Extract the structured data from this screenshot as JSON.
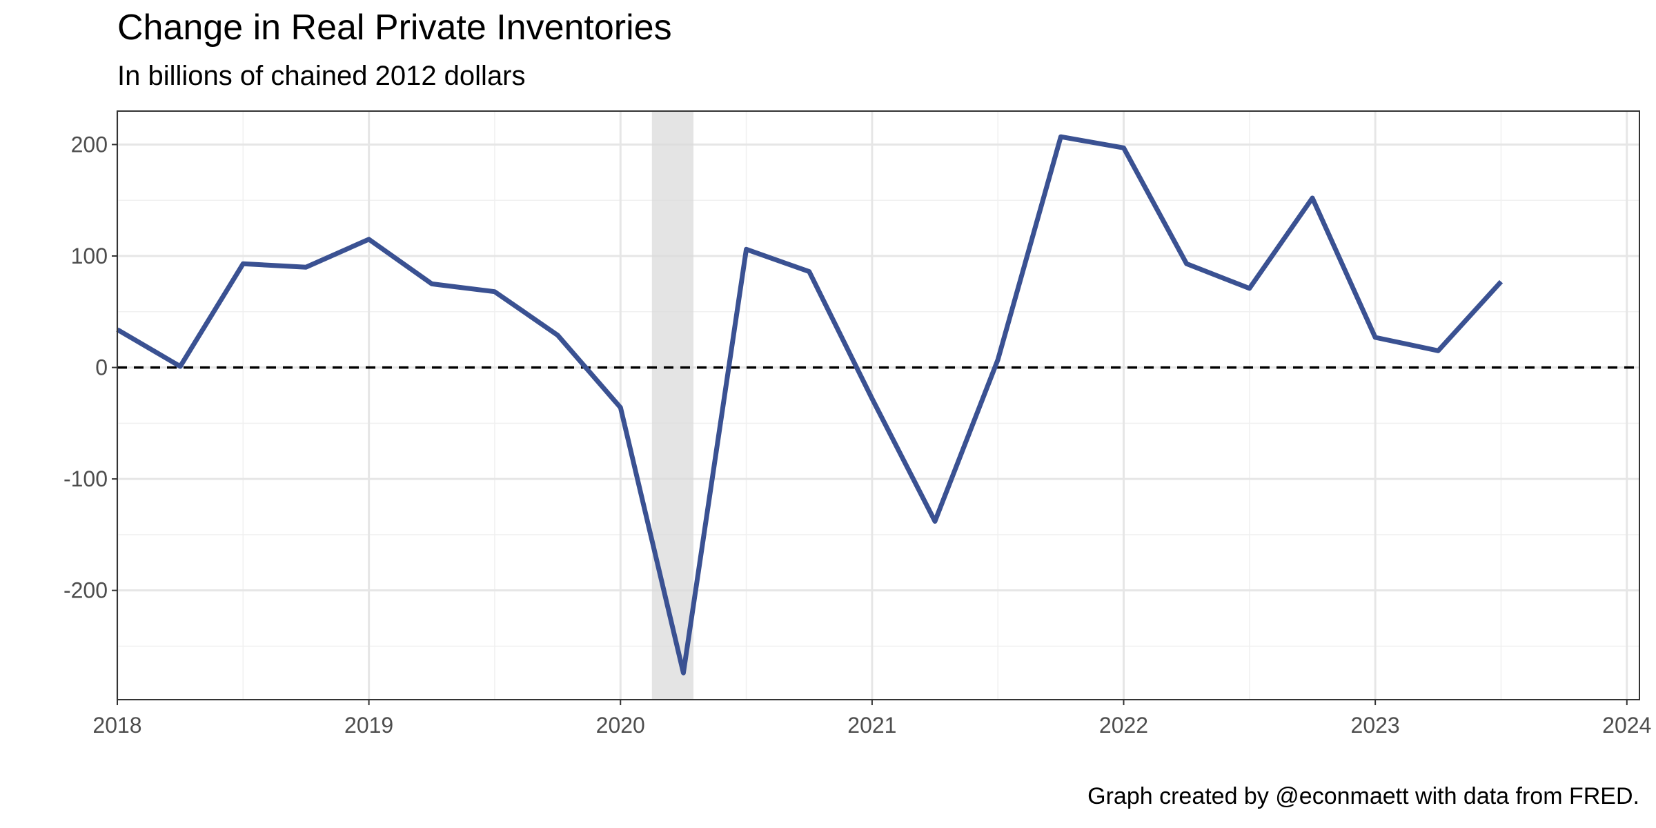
{
  "chart_data": {
    "type": "line",
    "title": "Change in Real Private Inventories",
    "subtitle": "In billions of chained 2012 dollars",
    "caption": "Graph created by @econmaett with data from FRED.",
    "xlabel": "",
    "ylabel": "",
    "xlim": [
      2018,
      2024.05
    ],
    "ylim": [
      -298,
      230
    ],
    "x_ticks": [
      2018,
      2019,
      2020,
      2021,
      2022,
      2023,
      2024
    ],
    "y_ticks": [
      -200,
      -100,
      0,
      100,
      200
    ],
    "y_tick_labels": [
      "-200",
      "-100",
      "0",
      "100",
      "200"
    ],
    "grid": true,
    "reference_line": {
      "y": 0,
      "style": "dashed",
      "color": "#000000"
    },
    "recession_shading": [
      {
        "start": 2020.125,
        "end": 2020.29
      }
    ],
    "series": [
      {
        "color": "#3a5192",
        "x": [
          2018.0,
          2018.25,
          2018.5,
          2018.75,
          2019.0,
          2019.25,
          2019.5,
          2019.75,
          2020.0,
          2020.25,
          2020.5,
          2020.75,
          2021.0,
          2021.25,
          2021.5,
          2021.75,
          2022.0,
          2022.25,
          2022.5,
          2022.75,
          2023.0,
          2023.25,
          2023.5
        ],
        "values": [
          34,
          1,
          93,
          90,
          115,
          75,
          68,
          29,
          -36,
          -274,
          106,
          86,
          -28,
          -138,
          7,
          207,
          197,
          93,
          71,
          152,
          27,
          15,
          77
        ]
      }
    ]
  }
}
